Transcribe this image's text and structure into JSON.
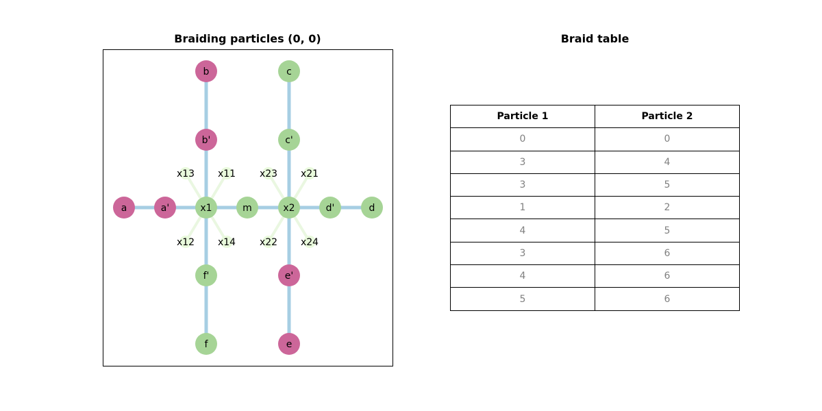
{
  "diagram": {
    "title": "Braiding particles (0, 0)",
    "colors": {
      "edge": "#a6cee3",
      "green_node": "#a6d496",
      "pink_node": "#cc6699",
      "faint_edge": "#eaf7e1",
      "faint_node": "#e9fadc"
    },
    "nodes": [
      {
        "id": "a",
        "label": "a",
        "color": "pink"
      },
      {
        "id": "a_p",
        "label": "a'",
        "color": "pink"
      },
      {
        "id": "x1",
        "label": "x1",
        "color": "green"
      },
      {
        "id": "m",
        "label": "m",
        "color": "green"
      },
      {
        "id": "x2",
        "label": "x2",
        "color": "green"
      },
      {
        "id": "d_p",
        "label": "d'",
        "color": "green"
      },
      {
        "id": "d",
        "label": "d",
        "color": "green"
      },
      {
        "id": "b",
        "label": "b",
        "color": "pink"
      },
      {
        "id": "b_p",
        "label": "b'",
        "color": "pink"
      },
      {
        "id": "f_p",
        "label": "f'",
        "color": "green"
      },
      {
        "id": "f",
        "label": "f",
        "color": "green"
      },
      {
        "id": "c",
        "label": "c",
        "color": "green"
      },
      {
        "id": "c_p",
        "label": "c'",
        "color": "green"
      },
      {
        "id": "e_p",
        "label": "e'",
        "color": "pink"
      },
      {
        "id": "e",
        "label": "e",
        "color": "pink"
      }
    ],
    "crossing_labels": [
      {
        "id": "x13",
        "label": "x13"
      },
      {
        "id": "x11",
        "label": "x11"
      },
      {
        "id": "x12",
        "label": "x12"
      },
      {
        "id": "x14",
        "label": "x14"
      },
      {
        "id": "x23",
        "label": "x23"
      },
      {
        "id": "x21",
        "label": "x21"
      },
      {
        "id": "x22",
        "label": "x22"
      },
      {
        "id": "x24",
        "label": "x24"
      }
    ]
  },
  "table": {
    "title": "Braid table",
    "headers": [
      "Particle 1",
      "Particle 2"
    ],
    "rows": [
      [
        "0",
        "0"
      ],
      [
        "3",
        "4"
      ],
      [
        "3",
        "5"
      ],
      [
        "1",
        "2"
      ],
      [
        "4",
        "5"
      ],
      [
        "3",
        "6"
      ],
      [
        "4",
        "6"
      ],
      [
        "5",
        "6"
      ]
    ]
  }
}
